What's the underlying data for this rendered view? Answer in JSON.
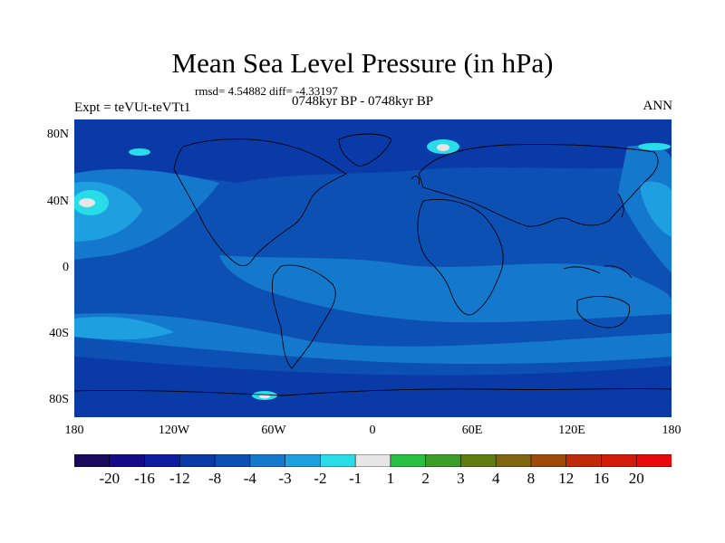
{
  "title": "Mean Sea Level Pressure (in hPa)",
  "stats": "rmsd= 4.54882 diff= -4.33197",
  "period": "0748kyr BP - 0748kyr BP",
  "left_label": "Expt = teVUt-teVTt1",
  "right_label": "ANN",
  "lat_labels": [
    "80N",
    "40N",
    "0",
    "40S",
    "80S"
  ],
  "lon_labels": [
    "180",
    "120W",
    "60W",
    "0",
    "60E",
    "120E",
    "180"
  ],
  "colorbar": {
    "labels": [
      "-20",
      "-16",
      "-12",
      "-8",
      "-4",
      "-3",
      "-2",
      "-1",
      "1",
      "2",
      "3",
      "4",
      "8",
      "12",
      "16",
      "20"
    ],
    "colors": [
      "#1a0a5e",
      "#150a8c",
      "#0d1ca0",
      "#0a3aa8",
      "#0d50b4",
      "#1478cc",
      "#1ea0e0",
      "#28dce8",
      "#e6e6e6",
      "#28c040",
      "#3c9c28",
      "#607d10",
      "#806610",
      "#a04a0a",
      "#be2a0a",
      "#d41a0a",
      "#e80a0a"
    ]
  },
  "map_colors": {
    "ocean_base": "#0d50b4",
    "deep": "#0a3aa8",
    "mid": "#1478cc",
    "light": "#1ea0e0",
    "cyan": "#28dce8",
    "white": "#e6e6e6"
  }
}
